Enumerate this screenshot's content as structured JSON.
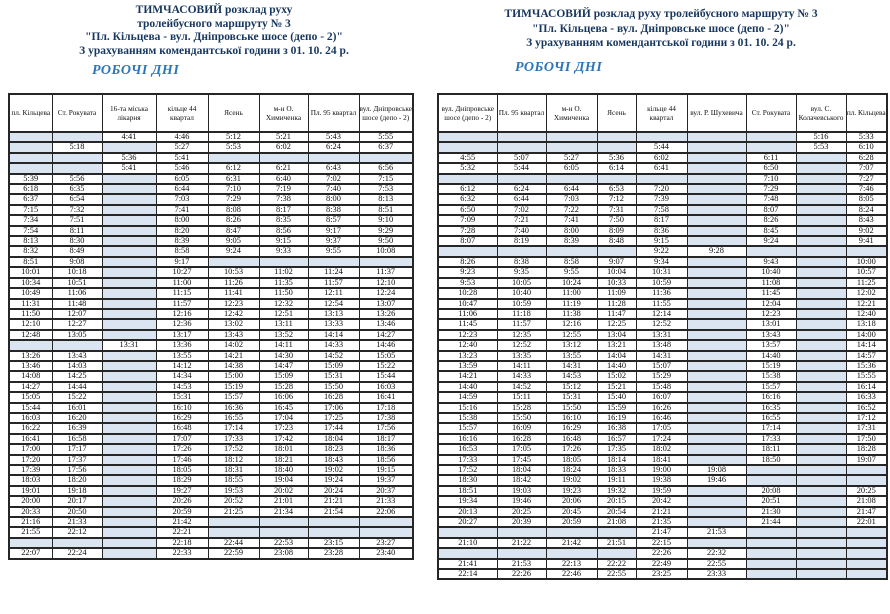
{
  "colors": {
    "title_color": "#17365d",
    "section_color": "#2e75b6",
    "shade_color": "#dbe5f1",
    "border_color": "#262626",
    "time_color": "#0d0d0d"
  },
  "left_panel": {
    "title_lines": [
      "ТИМЧАСОВИЙ розклад руху",
      "тролейбусного маршруту № 3",
      "\"Пл. Кільцева - вул. Дніпровське шосе (депо - 2)\"",
      "З урахуванням комендантської години з 01. 10. 24 р."
    ],
    "section_label": "РОБОЧІ ДНІ",
    "table": {
      "columns": [
        "пл. Кільцева",
        "Ст. Рокувата",
        "16-та міська лікарня",
        "кільце 44 квартал",
        "Ясень",
        "м-н О. Химиченка",
        "Пл. 95 квартал",
        "вул. Дніпровське шосе (депо - 2)"
      ],
      "rows": [
        [
          "",
          "",
          "4:41",
          "4:46",
          "5:12",
          "5:21",
          "5:43",
          "5:55"
        ],
        [
          "",
          "5:18",
          "",
          "5:27",
          "5:53",
          "6:02",
          "6:24",
          "6:37"
        ],
        [
          "",
          "",
          "5:36",
          "5:41",
          "",
          "",
          "",
          ""
        ],
        [
          "",
          "",
          "5:41",
          "5:46",
          "6:12",
          "6:21",
          "6:43",
          "6:56"
        ],
        [
          "5:39",
          "5:56",
          "",
          "6:05",
          "6:31",
          "6:40",
          "7:02",
          "7:15"
        ],
        [
          "6:18",
          "6:35",
          "",
          "6:44",
          "7:10",
          "7:19",
          "7:40",
          "7:53"
        ],
        [
          "6:37",
          "6:54",
          "",
          "7:03",
          "7:29",
          "7:38",
          "8:00",
          "8:13"
        ],
        [
          "7:15",
          "7:32",
          "",
          "7:41",
          "8:08",
          "8:17",
          "8:38",
          "8:51"
        ],
        [
          "7:34",
          "7:51",
          "",
          "8:00",
          "8:26",
          "8:35",
          "8:57",
          "9:10"
        ],
        [
          "7:54",
          "8:11",
          "",
          "8:20",
          "8:47",
          "8:56",
          "9:17",
          "9:29"
        ],
        [
          "8:13",
          "8:30",
          "",
          "8:39",
          "9:05",
          "9:15",
          "9:37",
          "9:50"
        ],
        [
          "8:32",
          "8:49",
          "",
          "8:58",
          "9:24",
          "9:33",
          "9:55",
          "10:08"
        ],
        [
          "8:51",
          "9:08",
          "",
          "9:17",
          "",
          "",
          "",
          ""
        ],
        [
          "10:01",
          "10:18",
          "",
          "10:27",
          "10:53",
          "11:02",
          "11:24",
          "11:37"
        ],
        [
          "10:34",
          "10:51",
          "",
          "11:00",
          "11:26",
          "11:35",
          "11:57",
          "12:10"
        ],
        [
          "10:49",
          "11:06",
          "",
          "11:15",
          "11:41",
          "11:50",
          "12:11",
          "12:24"
        ],
        [
          "11:31",
          "11:48",
          "",
          "11:57",
          "12:23",
          "12:32",
          "12:54",
          "13:07"
        ],
        [
          "11:50",
          "12:07",
          "",
          "12:16",
          "12:42",
          "12:51",
          "13:13",
          "13:26"
        ],
        [
          "12:10",
          "12:27",
          "",
          "12:36",
          "13:02",
          "13:11",
          "13:33",
          "13:46"
        ],
        [
          "12:48",
          "13:05",
          "",
          "13:17",
          "13:43",
          "13:52",
          "14:14",
          "14:27"
        ],
        [
          "",
          "",
          "13:31",
          "13:36",
          "14:02",
          "14:11",
          "14:33",
          "14:46"
        ],
        [
          "13:26",
          "13:43",
          "",
          "13:55",
          "14:21",
          "14:30",
          "14:52",
          "15:05"
        ],
        [
          "13:46",
          "14:03",
          "",
          "14:12",
          "14:38",
          "14:47",
          "15:09",
          "15:22"
        ],
        [
          "14:08",
          "14:25",
          "",
          "14:34",
          "15:00",
          "15:09",
          "15:31",
          "15:44"
        ],
        [
          "14:27",
          "14:44",
          "",
          "14:53",
          "15:19",
          "15:28",
          "15:50",
          "16:03"
        ],
        [
          "15:05",
          "15:22",
          "",
          "15:31",
          "15:57",
          "16:06",
          "16:28",
          "16:41"
        ],
        [
          "15:44",
          "16:01",
          "",
          "16:10",
          "16:36",
          "16:45",
          "17:06",
          "17:18"
        ],
        [
          "16:03",
          "16:20",
          "",
          "16:29",
          "16:55",
          "17:04",
          "17:25",
          "17:38"
        ],
        [
          "16:22",
          "16:39",
          "",
          "16:48",
          "17:14",
          "17:23",
          "17:44",
          "17:56"
        ],
        [
          "16:41",
          "16:58",
          "",
          "17:07",
          "17:33",
          "17:42",
          "18:04",
          "18:17"
        ],
        [
          "17:00",
          "17:17",
          "",
          "17:26",
          "17:52",
          "18:01",
          "18:23",
          "18:36"
        ],
        [
          "17:20",
          "17:37",
          "",
          "17:46",
          "18:12",
          "18:21",
          "18:43",
          "18:56"
        ],
        [
          "17:39",
          "17:56",
          "",
          "18:05",
          "18:31",
          "18:40",
          "19:02",
          "19:15"
        ],
        [
          "18:03",
          "18:20",
          "",
          "18:29",
          "18:55",
          "19:04",
          "19:24",
          "19:37"
        ],
        [
          "19:01",
          "19:18",
          "",
          "19:27",
          "19:53",
          "20:02",
          "20:24",
          "20:37"
        ],
        [
          "20:00",
          "20:17",
          "",
          "20:26",
          "20:52",
          "21:01",
          "21:21",
          "21:33"
        ],
        [
          "20:33",
          "20:50",
          "",
          "20:59",
          "21:25",
          "21:34",
          "21:54",
          "22:06"
        ],
        [
          "21:16",
          "21:33",
          "",
          "21:42",
          "",
          "",
          "",
          ""
        ],
        [
          "21:55",
          "22:12",
          "",
          "22:21",
          "",
          "",
          "",
          ""
        ],
        [
          "",
          "",
          "",
          "22:18",
          "22:44",
          "22:53",
          "23:15",
          "23:27"
        ],
        [
          "22:07",
          "22:24",
          "",
          "22:33",
          "22:59",
          "23:08",
          "23:28",
          "23:40"
        ]
      ]
    }
  },
  "right_panel": {
    "title_lines": [
      "ТИМЧАСОВИЙ розклад руху  тролейбусного маршруту № 3",
      "\"Пл. Кільцева - вул. Дніпровське шосе (депо - 2)\"",
      "З урахуванням комендантської години з 01. 10. 24 р."
    ],
    "section_label": "РОБОЧІ ДНІ",
    "table": {
      "columns": [
        "вул. Дніпровське шосе (депо - 2)",
        "Пл. 95 квартал",
        "м-н О. Химиченка",
        "Ясень",
        "кільце 44 квартал",
        "вул. Р. Шухевича",
        "Ст. Рокувата",
        "вул. С. Колачевського",
        "пл. Кільцева"
      ],
      "rows": [
        [
          "",
          "",
          "",
          "",
          "",
          "",
          "",
          "5:16",
          "5:33"
        ],
        [
          "",
          "",
          "",
          "",
          "5:44",
          "",
          "",
          "5:53",
          "6:10"
        ],
        [
          "4:55",
          "5:07",
          "5:27",
          "5:36",
          "6:02",
          "",
          "6:11",
          "",
          "6:28"
        ],
        [
          "5:32",
          "5:44",
          "6:05",
          "6:14",
          "6:41",
          "",
          "6:50",
          "",
          "7:07"
        ],
        [
          "",
          "",
          "",
          "",
          "",
          "",
          "7:10",
          "",
          "7:27"
        ],
        [
          "6:12",
          "6:24",
          "6:44",
          "6:53",
          "7:20",
          "",
          "7:29",
          "",
          "7:46"
        ],
        [
          "6:32",
          "6:44",
          "7:03",
          "7:12",
          "7:39",
          "",
          "7:48",
          "",
          "8:05"
        ],
        [
          "6:50",
          "7:02",
          "7:22",
          "7:31",
          "7:58",
          "",
          "8:07",
          "",
          "8:24"
        ],
        [
          "7:09",
          "7:21",
          "7:41",
          "7:50",
          "8:17",
          "",
          "8:26",
          "",
          "8:43"
        ],
        [
          "7:28",
          "7:40",
          "8:00",
          "8:09",
          "8:36",
          "",
          "8:45",
          "",
          "9:02"
        ],
        [
          "8:07",
          "8:19",
          "8:39",
          "8:48",
          "9:15",
          "",
          "9:24",
          "",
          "9:41"
        ],
        [
          "",
          "",
          "",
          "",
          "9:22",
          "9:28",
          "",
          "",
          ""
        ],
        [
          "8:26",
          "8:38",
          "8:58",
          "9:07",
          "9:34",
          "",
          "9:43",
          "",
          "10:00"
        ],
        [
          "9:23",
          "9:35",
          "9:55",
          "10:04",
          "10:31",
          "",
          "10:40",
          "",
          "10:57"
        ],
        [
          "9:53",
          "10:05",
          "10:24",
          "10:33",
          "10:59",
          "",
          "11:08",
          "",
          "11:25"
        ],
        [
          "10:28",
          "10:40",
          "11:00",
          "11:09",
          "11:36",
          "",
          "11:45",
          "",
          "12:02"
        ],
        [
          "10:47",
          "10:59",
          "11:19",
          "11:28",
          "11:55",
          "",
          "12:04",
          "",
          "12:21"
        ],
        [
          "11:06",
          "11:18",
          "11:38",
          "11:47",
          "12:14",
          "",
          "12:23",
          "",
          "12:40"
        ],
        [
          "11:45",
          "11:57",
          "12:16",
          "12:25",
          "12:52",
          "",
          "13:01",
          "",
          "13:18"
        ],
        [
          "12:23",
          "12:35",
          "12:55",
          "13:04",
          "13:31",
          "",
          "13:43",
          "",
          "14:00"
        ],
        [
          "12:40",
          "12:52",
          "13:12",
          "13:21",
          "13:48",
          "",
          "13:57",
          "",
          "14:14"
        ],
        [
          "13:23",
          "13:35",
          "13:55",
          "14:04",
          "14:31",
          "",
          "14:40",
          "",
          "14:57"
        ],
        [
          "13:59",
          "14:11",
          "14:31",
          "14:40",
          "15:07",
          "",
          "15:19",
          "",
          "15:36"
        ],
        [
          "14:21",
          "14:33",
          "14:53",
          "15:02",
          "15:29",
          "",
          "15:38",
          "",
          "15:55"
        ],
        [
          "14:40",
          "14:52",
          "15:12",
          "15:21",
          "15:48",
          "",
          "15:57",
          "",
          "16:14"
        ],
        [
          "14:59",
          "15:11",
          "15:31",
          "15:40",
          "16:07",
          "",
          "16:16",
          "",
          "16:33"
        ],
        [
          "15:16",
          "15:28",
          "15:50",
          "15:59",
          "16:26",
          "",
          "16:35",
          "",
          "16:52"
        ],
        [
          "15:38",
          "15:50",
          "16:10",
          "16:19",
          "16:46",
          "",
          "16:55",
          "",
          "17:12"
        ],
        [
          "15:57",
          "16:09",
          "16:29",
          "16:38",
          "17:05",
          "",
          "17:14",
          "",
          "17:31"
        ],
        [
          "16:16",
          "16:28",
          "16:48",
          "16:57",
          "17:24",
          "",
          "17:33",
          "",
          "17:50"
        ],
        [
          "16:53",
          "17:05",
          "17:26",
          "17:35",
          "18:02",
          "",
          "18:11",
          "",
          "18:28"
        ],
        [
          "17:33",
          "17:45",
          "18:05",
          "18:14",
          "18:41",
          "",
          "18:50",
          "",
          "19:07"
        ],
        [
          "17:52",
          "18:04",
          "18:24",
          "18:33",
          "19:00",
          "19:08",
          "",
          "",
          ""
        ],
        [
          "18:30",
          "18:42",
          "19:02",
          "19:11",
          "19:38",
          "19:46",
          "",
          "",
          ""
        ],
        [
          "18:51",
          "19:03",
          "19:23",
          "19:32",
          "19:59",
          "",
          "20:08",
          "",
          "20:25"
        ],
        [
          "19:34",
          "19:46",
          "20:06",
          "20:15",
          "20:42",
          "",
          "20:51",
          "",
          "21:08"
        ],
        [
          "20:13",
          "20:25",
          "20:45",
          "20:54",
          "21:21",
          "",
          "21:30",
          "",
          "21:47"
        ],
        [
          "20:27",
          "20:39",
          "20:59",
          "21:08",
          "21:35",
          "",
          "21:44",
          "",
          "22:01"
        ],
        [
          "",
          "",
          "",
          "",
          "21:47",
          "21:53",
          "",
          "",
          ""
        ],
        [
          "21:10",
          "21:22",
          "21:42",
          "21:51",
          "22:15",
          "",
          "",
          "",
          ""
        ],
        [
          "",
          "",
          "",
          "",
          "22:26",
          "22:32",
          "",
          "",
          ""
        ],
        [
          "21:41",
          "21:53",
          "22:13",
          "22:22",
          "22:49",
          "22:55",
          "",
          "",
          ""
        ],
        [
          "22:14",
          "22:26",
          "22:46",
          "22:55",
          "23:25",
          "23:33",
          "",
          "",
          ""
        ]
      ]
    }
  }
}
